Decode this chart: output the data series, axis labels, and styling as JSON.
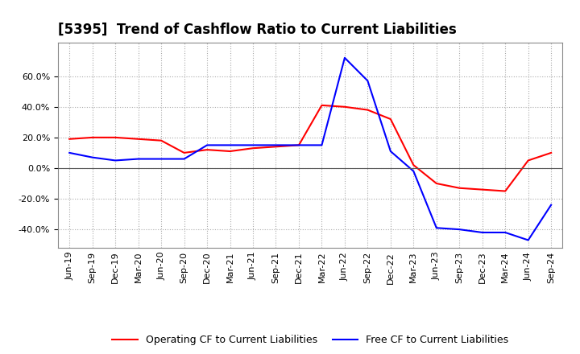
{
  "title": "[5395]  Trend of Cashflow Ratio to Current Liabilities",
  "x_labels": [
    "Jun-19",
    "Sep-19",
    "Dec-19",
    "Mar-20",
    "Jun-20",
    "Sep-20",
    "Dec-20",
    "Mar-21",
    "Jun-21",
    "Sep-21",
    "Dec-21",
    "Mar-22",
    "Jun-22",
    "Sep-22",
    "Dec-22",
    "Mar-23",
    "Jun-23",
    "Sep-23",
    "Dec-23",
    "Mar-24",
    "Jun-24",
    "Sep-24"
  ],
  "operating_cf": [
    0.19,
    0.2,
    0.2,
    0.19,
    0.18,
    0.1,
    0.12,
    0.11,
    0.13,
    0.14,
    0.15,
    0.41,
    0.4,
    0.38,
    0.32,
    0.02,
    -0.1,
    -0.13,
    -0.14,
    -0.15,
    0.05,
    0.1
  ],
  "free_cf": [
    0.1,
    0.07,
    0.05,
    0.06,
    0.06,
    0.06,
    0.15,
    0.15,
    0.15,
    0.15,
    0.15,
    0.15,
    0.72,
    0.57,
    0.11,
    -0.02,
    -0.39,
    -0.4,
    -0.42,
    -0.42,
    -0.47,
    -0.24
  ],
  "ylim": [
    -0.52,
    0.82
  ],
  "yticks": [
    -0.4,
    -0.2,
    0.0,
    0.2,
    0.4,
    0.6
  ],
  "operating_color": "#ff0000",
  "free_color": "#0000ff",
  "background_color": "#ffffff",
  "grid_color": "#aaaaaa",
  "title_fontsize": 12,
  "legend_labels": [
    "Operating CF to Current Liabilities",
    "Free CF to Current Liabilities"
  ]
}
